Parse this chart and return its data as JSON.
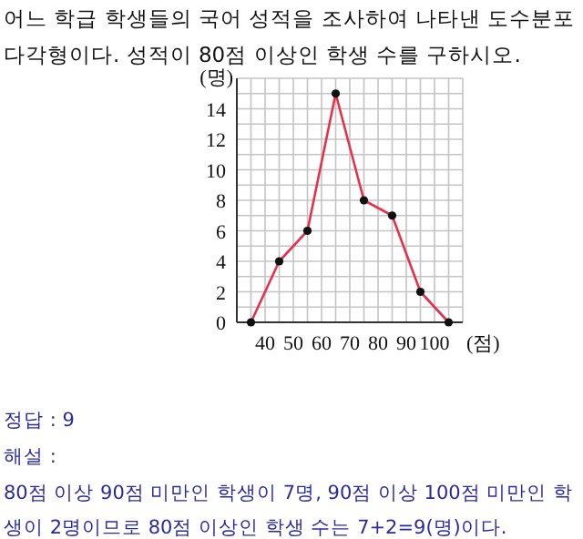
{
  "chart_data": {
    "type": "line",
    "title": "어느 학급 학생들의 국어 성적을 조사하여 나타낸 도수분포다각형이다. 성적이 80점 이상인 학생 수를 구하시오.",
    "x": [
      35,
      45,
      55,
      65,
      75,
      85,
      95,
      105
    ],
    "series": [
      {
        "color": "#e8304a",
        "values": [
          0,
          4,
          6,
          15,
          8,
          7,
          2,
          0
        ]
      }
    ],
    "xlim": [
      30,
      110
    ],
    "ylim": [
      0,
      16
    ],
    "xticks": [
      40,
      50,
      60,
      70,
      80,
      90,
      100
    ],
    "yticks": [
      0,
      2,
      4,
      6,
      8,
      10,
      12,
      14
    ],
    "xlabel": "(점)",
    "ylabel": "(명)",
    "grid": true,
    "marker": "circle",
    "annotations": [
      "정답 : 9",
      "해설 :",
      "80점 이상 90점 미만인 학생이 7명, 90점 이상 100점 미만인 학생이 2명이므로 80점 이상인 학생 수는 7+2=9(명)이다."
    ]
  }
}
